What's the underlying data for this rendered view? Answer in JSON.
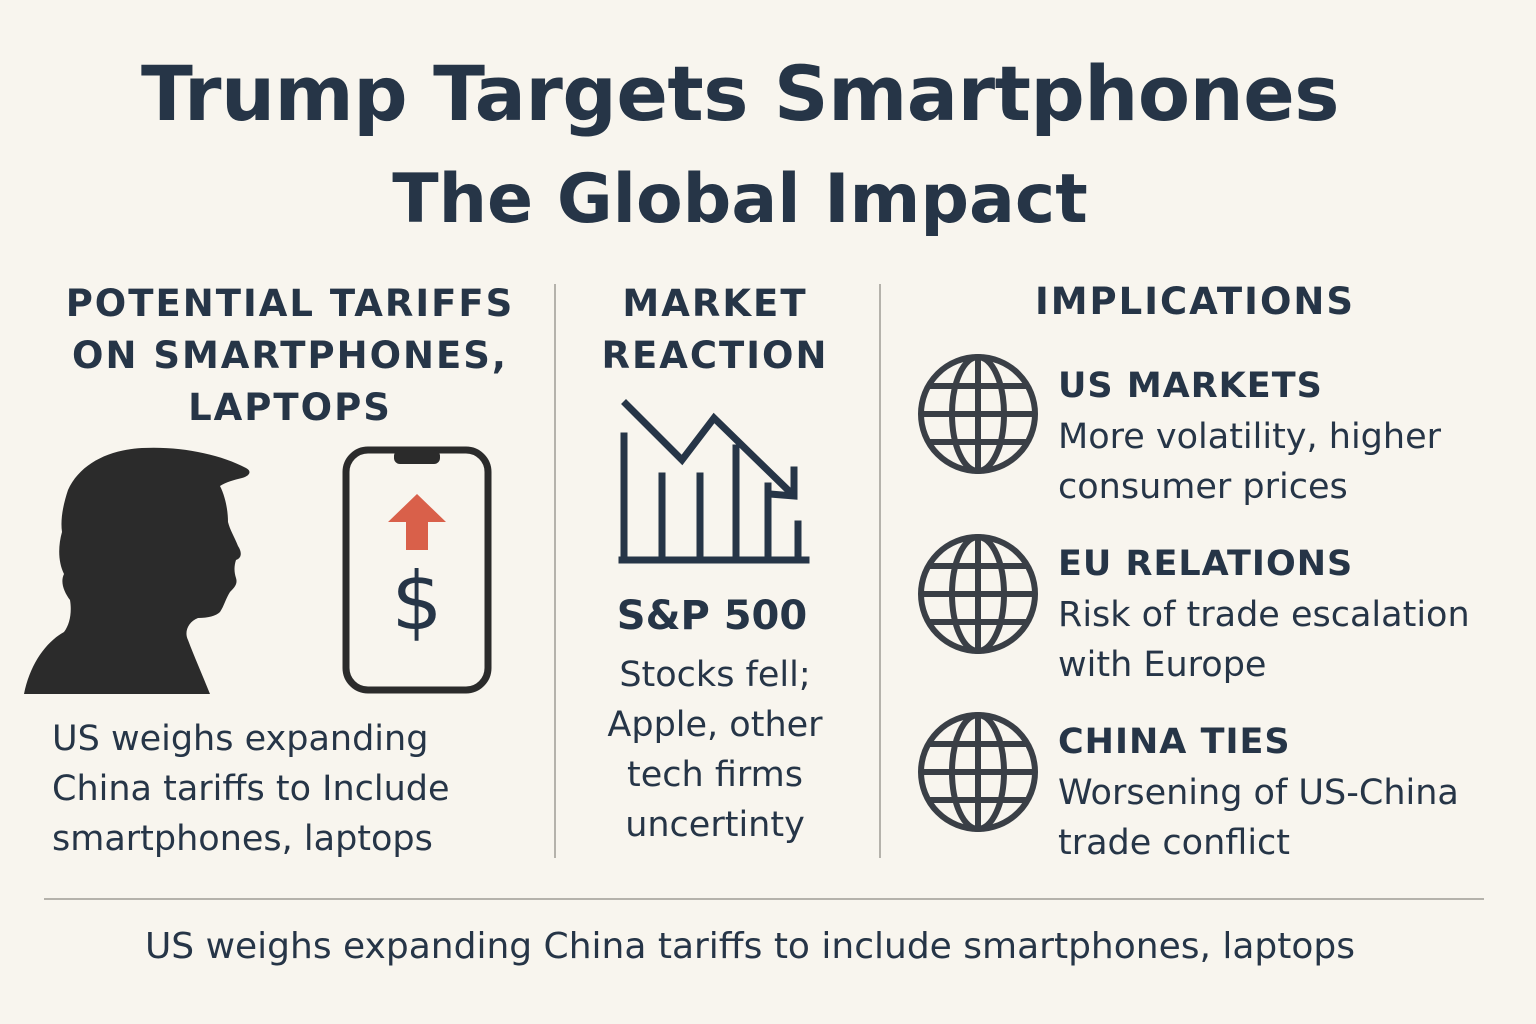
{
  "header": {
    "title": "Trump Targets Smartphones",
    "subtitle": "The Global Impact"
  },
  "tariffs": {
    "heading": "POTENTIAL TARIFFS ON SMARTPHONES, LAPTOPS",
    "description": "US weighs expanding China tariffs to Include smartphones, laptops",
    "phone_symbol": "$",
    "icons": [
      "person-silhouette-icon",
      "smartphone-icon",
      "arrow-up-icon",
      "dollar-icon"
    ],
    "arrow_color": "#d9604a"
  },
  "market": {
    "heading": "MARKET REACTION",
    "index_label": "S&P 500",
    "description": "Stocks fell; Apple, other tech firms uncertinty",
    "icon": "declining-chart-icon"
  },
  "implications": {
    "heading": "IMPLICATIONS",
    "items": [
      {
        "title": "US MARKETS",
        "text": "More volatility, higher consumer prices",
        "icon": "globe-icon"
      },
      {
        "title": "EU RELATIONS",
        "text": "Risk of trade escalation with Europe",
        "icon": "globe-icon"
      },
      {
        "title": "CHINA TIES",
        "text": "Worsening of US-China trade conflict",
        "icon": "globe-icon"
      }
    ]
  },
  "footer": {
    "caption": "US weighs expanding China tariffs to include smartphones, laptops"
  },
  "colors": {
    "background": "#f8f5ee",
    "text": "#263547",
    "silhouette": "#2b2b2b",
    "divider": "#b5b2ab"
  }
}
